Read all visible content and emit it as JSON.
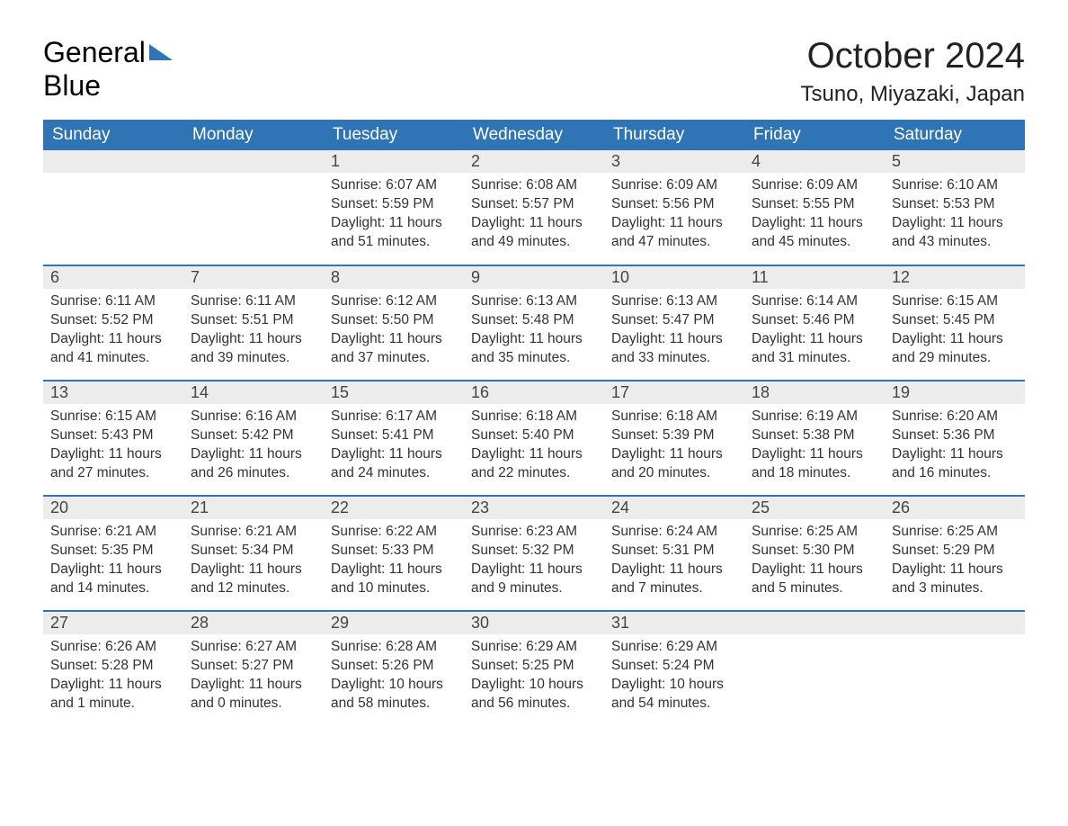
{
  "brand": {
    "line1": "General",
    "line2": "Blue",
    "accent_color": "#2f74b5"
  },
  "title": "October 2024",
  "location": "Tsuno, Miyazaki, Japan",
  "colors": {
    "header_bg": "#2f74b5",
    "header_text": "#ffffff",
    "daynum_bg": "#ececec",
    "row_border": "#2f74b5",
    "body_text": "#333333",
    "page_bg": "#ffffff"
  },
  "typography": {
    "title_fontsize": 40,
    "location_fontsize": 24,
    "weekday_fontsize": 19,
    "daynum_fontsize": 18,
    "body_fontsize": 15.5,
    "font_family": "Arial"
  },
  "weekdays": [
    "Sunday",
    "Monday",
    "Tuesday",
    "Wednesday",
    "Thursday",
    "Friday",
    "Saturday"
  ],
  "grid": [
    [
      null,
      null,
      {
        "n": "1",
        "sunrise": "Sunrise: 6:07 AM",
        "sunset": "Sunset: 5:59 PM",
        "dayl1": "Daylight: 11 hours",
        "dayl2": "and 51 minutes."
      },
      {
        "n": "2",
        "sunrise": "Sunrise: 6:08 AM",
        "sunset": "Sunset: 5:57 PM",
        "dayl1": "Daylight: 11 hours",
        "dayl2": "and 49 minutes."
      },
      {
        "n": "3",
        "sunrise": "Sunrise: 6:09 AM",
        "sunset": "Sunset: 5:56 PM",
        "dayl1": "Daylight: 11 hours",
        "dayl2": "and 47 minutes."
      },
      {
        "n": "4",
        "sunrise": "Sunrise: 6:09 AM",
        "sunset": "Sunset: 5:55 PM",
        "dayl1": "Daylight: 11 hours",
        "dayl2": "and 45 minutes."
      },
      {
        "n": "5",
        "sunrise": "Sunrise: 6:10 AM",
        "sunset": "Sunset: 5:53 PM",
        "dayl1": "Daylight: 11 hours",
        "dayl2": "and 43 minutes."
      }
    ],
    [
      {
        "n": "6",
        "sunrise": "Sunrise: 6:11 AM",
        "sunset": "Sunset: 5:52 PM",
        "dayl1": "Daylight: 11 hours",
        "dayl2": "and 41 minutes."
      },
      {
        "n": "7",
        "sunrise": "Sunrise: 6:11 AM",
        "sunset": "Sunset: 5:51 PM",
        "dayl1": "Daylight: 11 hours",
        "dayl2": "and 39 minutes."
      },
      {
        "n": "8",
        "sunrise": "Sunrise: 6:12 AM",
        "sunset": "Sunset: 5:50 PM",
        "dayl1": "Daylight: 11 hours",
        "dayl2": "and 37 minutes."
      },
      {
        "n": "9",
        "sunrise": "Sunrise: 6:13 AM",
        "sunset": "Sunset: 5:48 PM",
        "dayl1": "Daylight: 11 hours",
        "dayl2": "and 35 minutes."
      },
      {
        "n": "10",
        "sunrise": "Sunrise: 6:13 AM",
        "sunset": "Sunset: 5:47 PM",
        "dayl1": "Daylight: 11 hours",
        "dayl2": "and 33 minutes."
      },
      {
        "n": "11",
        "sunrise": "Sunrise: 6:14 AM",
        "sunset": "Sunset: 5:46 PM",
        "dayl1": "Daylight: 11 hours",
        "dayl2": "and 31 minutes."
      },
      {
        "n": "12",
        "sunrise": "Sunrise: 6:15 AM",
        "sunset": "Sunset: 5:45 PM",
        "dayl1": "Daylight: 11 hours",
        "dayl2": "and 29 minutes."
      }
    ],
    [
      {
        "n": "13",
        "sunrise": "Sunrise: 6:15 AM",
        "sunset": "Sunset: 5:43 PM",
        "dayl1": "Daylight: 11 hours",
        "dayl2": "and 27 minutes."
      },
      {
        "n": "14",
        "sunrise": "Sunrise: 6:16 AM",
        "sunset": "Sunset: 5:42 PM",
        "dayl1": "Daylight: 11 hours",
        "dayl2": "and 26 minutes."
      },
      {
        "n": "15",
        "sunrise": "Sunrise: 6:17 AM",
        "sunset": "Sunset: 5:41 PM",
        "dayl1": "Daylight: 11 hours",
        "dayl2": "and 24 minutes."
      },
      {
        "n": "16",
        "sunrise": "Sunrise: 6:18 AM",
        "sunset": "Sunset: 5:40 PM",
        "dayl1": "Daylight: 11 hours",
        "dayl2": "and 22 minutes."
      },
      {
        "n": "17",
        "sunrise": "Sunrise: 6:18 AM",
        "sunset": "Sunset: 5:39 PM",
        "dayl1": "Daylight: 11 hours",
        "dayl2": "and 20 minutes."
      },
      {
        "n": "18",
        "sunrise": "Sunrise: 6:19 AM",
        "sunset": "Sunset: 5:38 PM",
        "dayl1": "Daylight: 11 hours",
        "dayl2": "and 18 minutes."
      },
      {
        "n": "19",
        "sunrise": "Sunrise: 6:20 AM",
        "sunset": "Sunset: 5:36 PM",
        "dayl1": "Daylight: 11 hours",
        "dayl2": "and 16 minutes."
      }
    ],
    [
      {
        "n": "20",
        "sunrise": "Sunrise: 6:21 AM",
        "sunset": "Sunset: 5:35 PM",
        "dayl1": "Daylight: 11 hours",
        "dayl2": "and 14 minutes."
      },
      {
        "n": "21",
        "sunrise": "Sunrise: 6:21 AM",
        "sunset": "Sunset: 5:34 PM",
        "dayl1": "Daylight: 11 hours",
        "dayl2": "and 12 minutes."
      },
      {
        "n": "22",
        "sunrise": "Sunrise: 6:22 AM",
        "sunset": "Sunset: 5:33 PM",
        "dayl1": "Daylight: 11 hours",
        "dayl2": "and 10 minutes."
      },
      {
        "n": "23",
        "sunrise": "Sunrise: 6:23 AM",
        "sunset": "Sunset: 5:32 PM",
        "dayl1": "Daylight: 11 hours",
        "dayl2": "and 9 minutes."
      },
      {
        "n": "24",
        "sunrise": "Sunrise: 6:24 AM",
        "sunset": "Sunset: 5:31 PM",
        "dayl1": "Daylight: 11 hours",
        "dayl2": "and 7 minutes."
      },
      {
        "n": "25",
        "sunrise": "Sunrise: 6:25 AM",
        "sunset": "Sunset: 5:30 PM",
        "dayl1": "Daylight: 11 hours",
        "dayl2": "and 5 minutes."
      },
      {
        "n": "26",
        "sunrise": "Sunrise: 6:25 AM",
        "sunset": "Sunset: 5:29 PM",
        "dayl1": "Daylight: 11 hours",
        "dayl2": "and 3 minutes."
      }
    ],
    [
      {
        "n": "27",
        "sunrise": "Sunrise: 6:26 AM",
        "sunset": "Sunset: 5:28 PM",
        "dayl1": "Daylight: 11 hours",
        "dayl2": "and 1 minute."
      },
      {
        "n": "28",
        "sunrise": "Sunrise: 6:27 AM",
        "sunset": "Sunset: 5:27 PM",
        "dayl1": "Daylight: 11 hours",
        "dayl2": "and 0 minutes."
      },
      {
        "n": "29",
        "sunrise": "Sunrise: 6:28 AM",
        "sunset": "Sunset: 5:26 PM",
        "dayl1": "Daylight: 10 hours",
        "dayl2": "and 58 minutes."
      },
      {
        "n": "30",
        "sunrise": "Sunrise: 6:29 AM",
        "sunset": "Sunset: 5:25 PM",
        "dayl1": "Daylight: 10 hours",
        "dayl2": "and 56 minutes."
      },
      {
        "n": "31",
        "sunrise": "Sunrise: 6:29 AM",
        "sunset": "Sunset: 5:24 PM",
        "dayl1": "Daylight: 10 hours",
        "dayl2": "and 54 minutes."
      },
      null,
      null
    ]
  ]
}
